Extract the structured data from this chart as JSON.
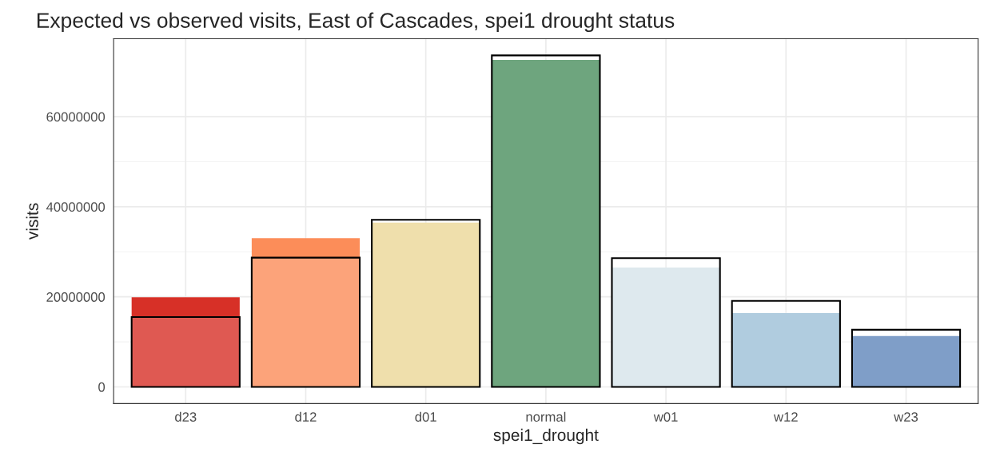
{
  "chart_data": {
    "type": "bar",
    "title": "Expected vs observed visits, East of Cascades, spei1 drought status",
    "xlabel": "spei1_drought",
    "ylabel": "visits",
    "categories": [
      "d23",
      "d12",
      "d01",
      "normal",
      "w01",
      "w12",
      "w23"
    ],
    "series": [
      {
        "colors": [
          "#d73027",
          "#fc8d59",
          "#ecd798",
          "#4a8f5e",
          "#d6e4ea",
          "#9dc0d8",
          "#5f86bb"
        ],
        "values": [
          19900000,
          33000000,
          36500000,
          72600000,
          26500000,
          16400000,
          11300000
        ]
      },
      {
        "color": "#000000",
        "values": [
          15500000,
          28700000,
          37100000,
          73600000,
          28600000,
          19100000,
          12700000
        ]
      }
    ],
    "ylim": [
      -3700000,
      77300000
    ],
    "yticks": [
      0,
      20000000,
      40000000,
      60000000
    ],
    "grid": true,
    "legend": false
  }
}
